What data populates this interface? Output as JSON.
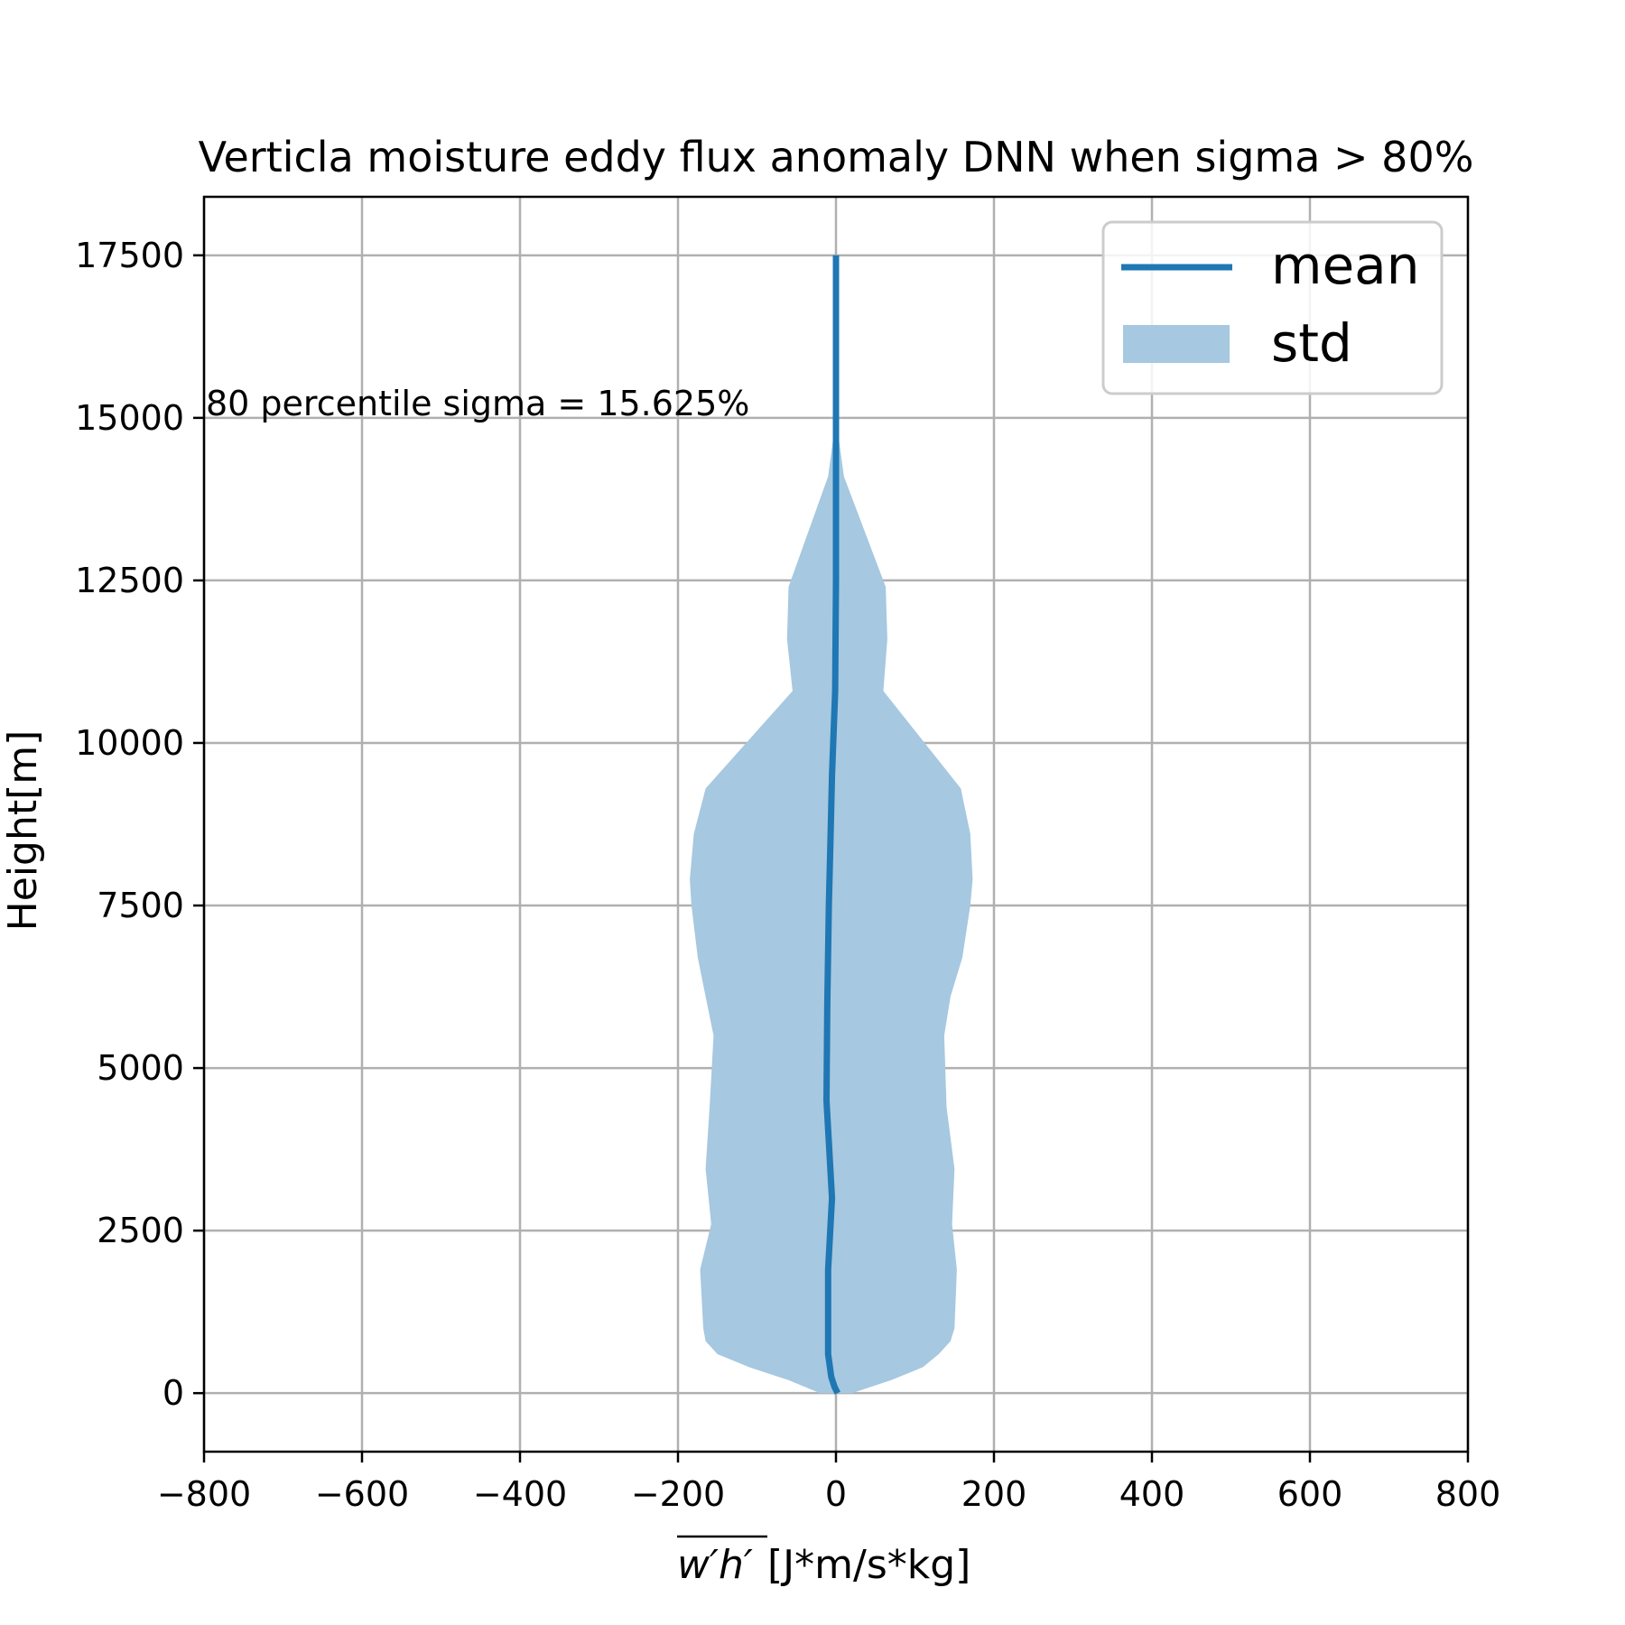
{
  "chart_data": {
    "type": "area",
    "title": "Verticla moisture eddy flux anomaly DNN when sigma > 80%",
    "xlabel_overline": "w′h′",
    "xlabel_units": "[J*m/s*kg]",
    "ylabel": "Height[m]",
    "xlim": [
      -800,
      800
    ],
    "ylim": [
      -900,
      18400
    ],
    "xticks": [
      -800,
      -600,
      -400,
      -200,
      0,
      200,
      400,
      600,
      800
    ],
    "xtick_labels": [
      "−800",
      "−600",
      "−400",
      "−200",
      "0",
      "200",
      "400",
      "600",
      "800"
    ],
    "yticks": [
      0,
      2500,
      5000,
      7500,
      10000,
      12500,
      15000,
      17500
    ],
    "ytick_labels": [
      "0",
      "2500",
      "5000",
      "7500",
      "10000",
      "12500",
      "15000",
      "17500"
    ],
    "grid": true,
    "legend_position": "top-right",
    "annotation": "80 percentile sigma = 15.625%",
    "series": [
      {
        "name": "mean",
        "style": "line",
        "color": "#1f77b4",
        "y": [
          0,
          100,
          250,
          600,
          1000,
          1900,
          3000,
          4500,
          6000,
          7500,
          8500,
          9500,
          10800,
          12500,
          14100,
          15000,
          16000,
          17500
        ],
        "x": [
          2,
          -2,
          -6,
          -10,
          -10,
          -10,
          -5,
          -12,
          -11,
          -9,
          -7,
          -5,
          -1,
          0,
          0,
          0,
          0,
          0
        ]
      },
      {
        "name": "std",
        "style": "band",
        "color": "#a6c8e0",
        "y": [
          0,
          200,
          400,
          600,
          800,
          1000,
          1900,
          2600,
          3450,
          4400,
          5500,
          6100,
          6700,
          7500,
          7900,
          8600,
          9300,
          10800,
          11600,
          12400,
          14100,
          15000
        ],
        "lower": [
          -20,
          -60,
          -110,
          -150,
          -165,
          -168,
          -172,
          -158,
          -165,
          -160,
          -155,
          -165,
          -175,
          -183,
          -185,
          -180,
          -165,
          -55,
          -62,
          -60,
          -10,
          0
        ],
        "upper": [
          20,
          70,
          110,
          130,
          145,
          150,
          153,
          147,
          150,
          140,
          137,
          145,
          160,
          170,
          173,
          170,
          158,
          60,
          65,
          63,
          10,
          0
        ]
      }
    ]
  }
}
